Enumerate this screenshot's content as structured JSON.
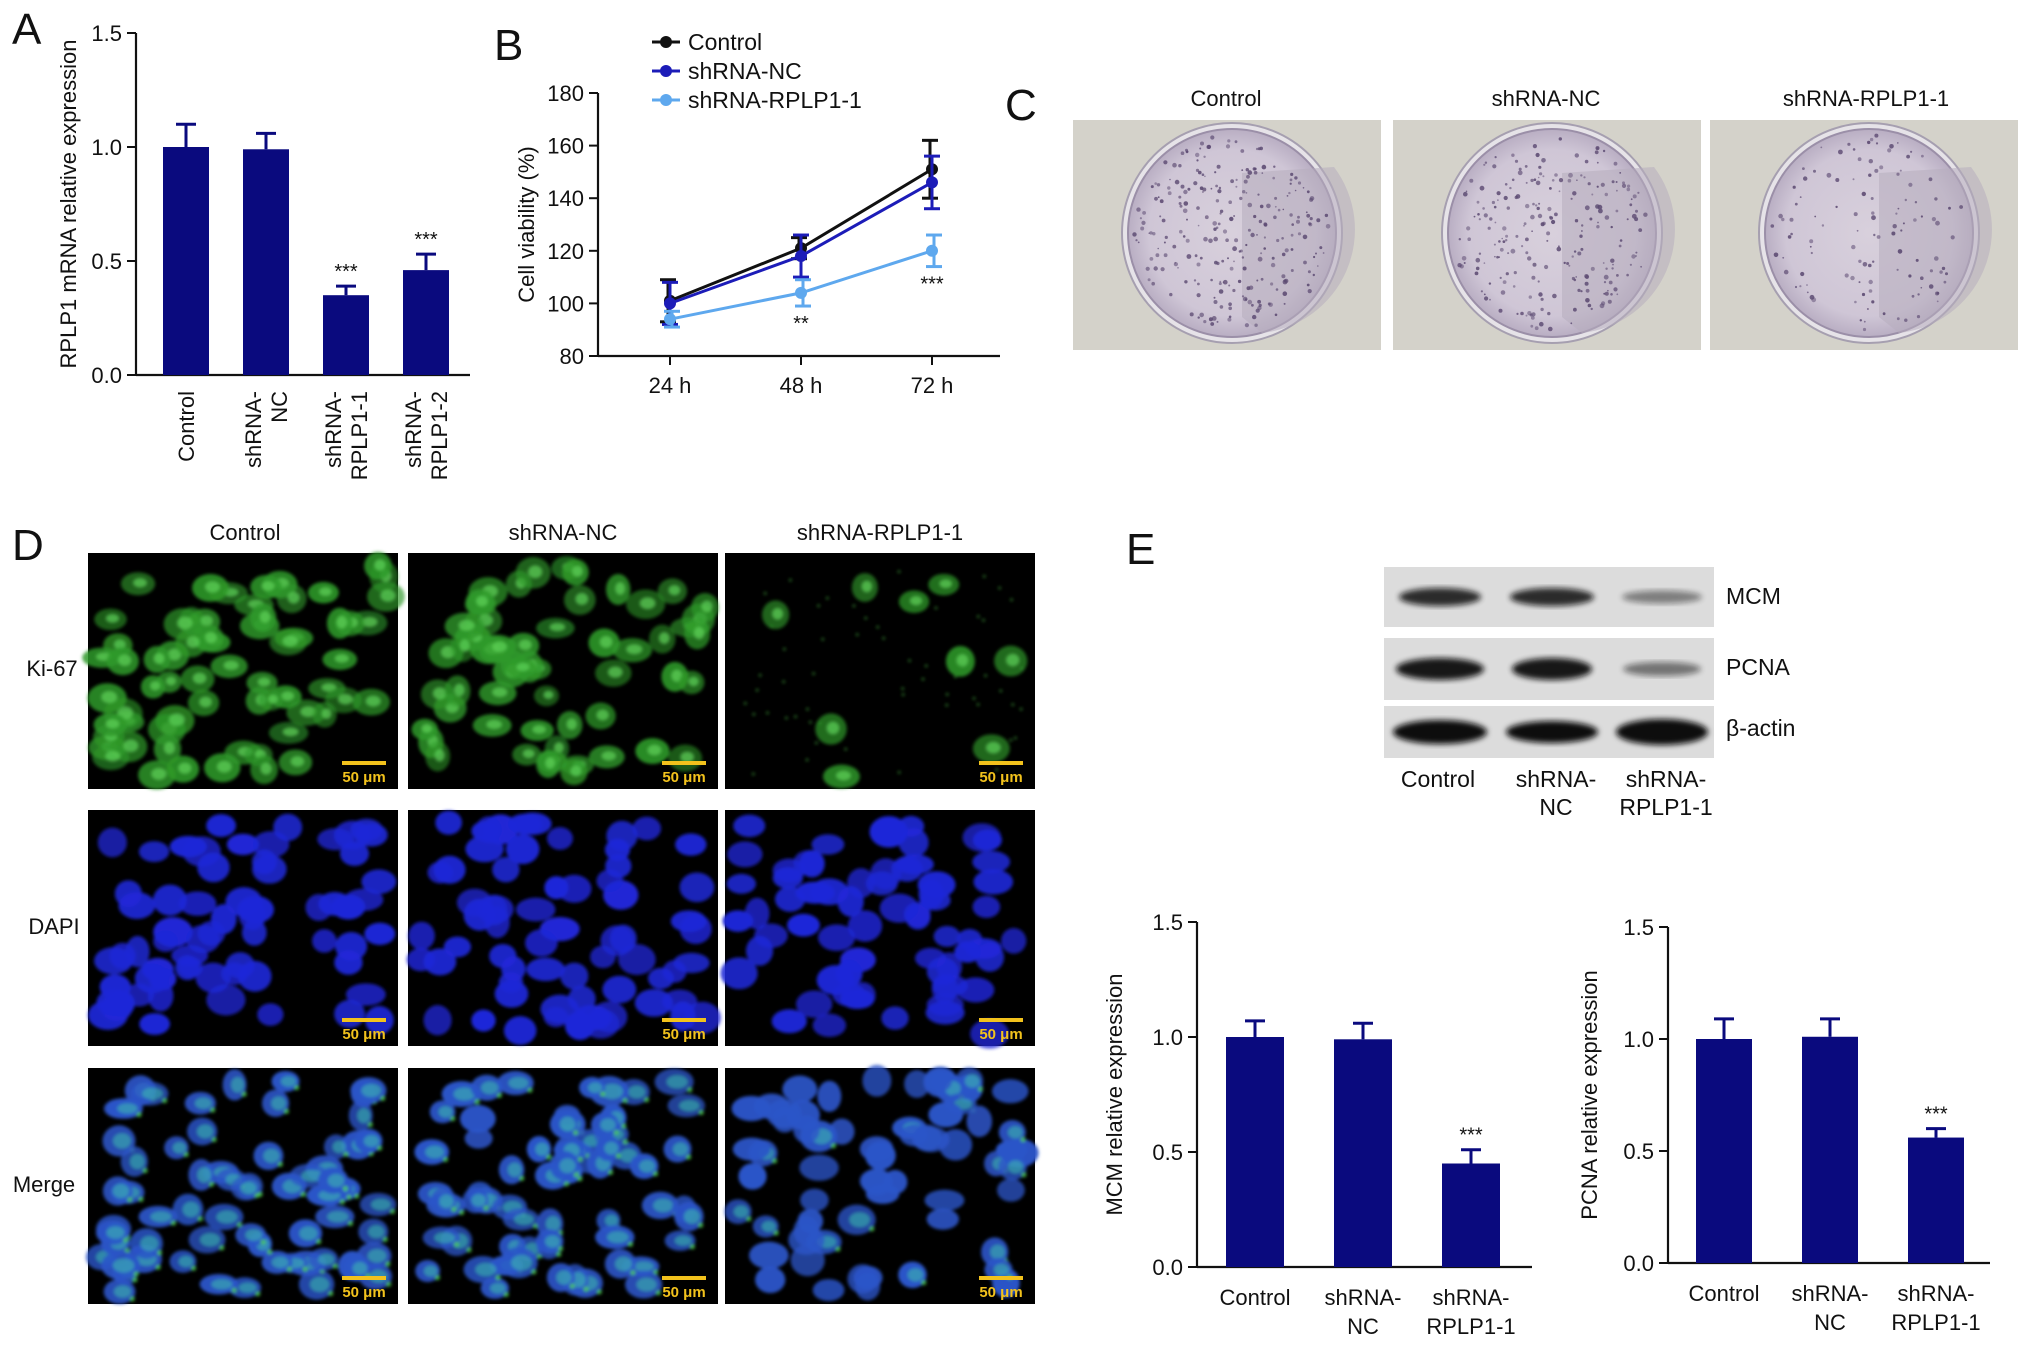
{
  "panels": {
    "A": {
      "letter": "A"
    },
    "B": {
      "letter": "B"
    },
    "C": {
      "letter": "C",
      "labels": [
        "Control",
        "shRNA-NC",
        "shRNA-RPLP1-1"
      ]
    },
    "D": {
      "letter": "D",
      "columns": [
        "Control",
        "shRNA-NC",
        "shRNA-RPLP1-1"
      ],
      "rows": [
        "Ki-67",
        "DAPI",
        "Merge"
      ],
      "scale_label": "50 μm"
    },
    "E": {
      "letter": "E",
      "blot_bands": [
        "MCM",
        "PCNA",
        "β-actin"
      ],
      "blot_lanes": [
        [
          "Control"
        ],
        [
          "shRNA-",
          "NC"
        ],
        [
          "shRNA-",
          "RPLP1-1"
        ]
      ]
    }
  },
  "chart_data": [
    {
      "id": "A",
      "type": "bar",
      "categories": [
        [
          "Control"
        ],
        [
          "shRNA-",
          "NC"
        ],
        [
          "shRNA-",
          "RPLP1-1"
        ],
        [
          "shRNA-",
          "RPLP1-2"
        ]
      ],
      "values": [
        1.0,
        0.99,
        0.35,
        0.46
      ],
      "errors": [
        0.1,
        0.07,
        0.04,
        0.07
      ],
      "significance": [
        "",
        "",
        "***",
        "***"
      ],
      "ylabel": "RPLP1 mRNA relative expression",
      "ylim": [
        0,
        1.5
      ],
      "yticks": [
        "0.0",
        "0.5",
        "1.0",
        "1.5"
      ],
      "color": "#0a0a7e"
    },
    {
      "id": "B",
      "type": "line",
      "x": [
        "24 h",
        "48 h",
        "72 h"
      ],
      "series": [
        {
          "name": "Control",
          "values": [
            101,
            121,
            151
          ],
          "errors": [
            8,
            4,
            11
          ],
          "color": "#111111"
        },
        {
          "name": "shRNA-NC",
          "values": [
            100,
            118,
            146
          ],
          "errors": [
            8,
            8,
            10
          ],
          "color": "#1c1cb8"
        },
        {
          "name": "shRNA-RPLP1-1",
          "values": [
            94,
            104,
            120
          ],
          "errors": [
            3,
            5,
            6
          ],
          "color": "#5ea8ee"
        }
      ],
      "significance": [
        "",
        "**",
        "***"
      ],
      "ylabel": "Cell viability (%)",
      "ylim": [
        80,
        180
      ],
      "yticks": [
        "80",
        "100",
        "120",
        "140",
        "160",
        "180"
      ],
      "legend": "top-left"
    },
    {
      "id": "E-MCM",
      "type": "bar",
      "categories": [
        [
          "Control"
        ],
        [
          "shRNA-",
          "NC"
        ],
        [
          "shRNA-",
          "RPLP1-1"
        ]
      ],
      "values": [
        1.0,
        0.99,
        0.45
      ],
      "errors": [
        0.07,
        0.07,
        0.06
      ],
      "significance": [
        "",
        "",
        "***"
      ],
      "ylabel": "MCM relative expression",
      "ylim": [
        0,
        1.5
      ],
      "yticks": [
        "0.0",
        "0.5",
        "1.0",
        "1.5"
      ],
      "color": "#0a0a7e"
    },
    {
      "id": "E-PCNA",
      "type": "bar",
      "categories": [
        [
          "Control"
        ],
        [
          "shRNA-",
          "NC"
        ],
        [
          "shRNA-",
          "RPLP1-1"
        ]
      ],
      "values": [
        1.0,
        1.01,
        0.56
      ],
      "errors": [
        0.09,
        0.08,
        0.04
      ],
      "significance": [
        "",
        "",
        "***"
      ],
      "ylabel": "PCNA relative expression",
      "ylim": [
        0,
        1.5
      ],
      "yticks": [
        "0.0",
        "0.5",
        "1.0",
        "1.5"
      ],
      "color": "#0a0a7e"
    }
  ]
}
